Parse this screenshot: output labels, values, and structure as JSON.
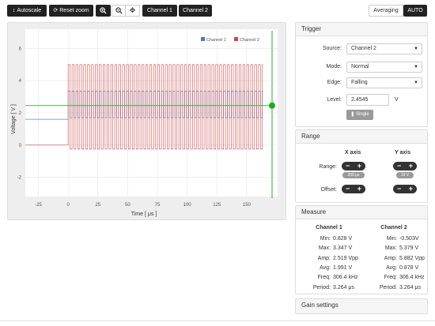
{
  "toolbar": {
    "autoscale_label": "Autoscale",
    "reset_zoom_label": "Reset zoom",
    "channel1_label": "Channel 1",
    "channel2_label": "Channel 2",
    "averaging_label": "Averaging",
    "auto_label": "AUTO"
  },
  "plot": {
    "xlabel": "Time [ μs ]",
    "ylabel": "Voltage [ V ]",
    "legend": [
      "Channel 1",
      "Channel 2"
    ],
    "colors": {
      "ch1": "#4a79b7",
      "ch2": "#c9494b",
      "trigger": "#3aa63a"
    }
  },
  "chart_data": {
    "type": "line",
    "xlabel": "Time [ μs ]",
    "ylabel": "Voltage [ V ]",
    "xlim": [
      -36,
      176
    ],
    "ylim": [
      -3.2,
      7.2
    ],
    "x_ticks": [
      -25,
      0,
      25,
      50,
      75,
      100,
      125,
      150
    ],
    "y_ticks": [
      -2,
      0,
      2,
      4,
      6
    ],
    "x_tick_labels": [
      "-25",
      "0",
      "25",
      "50",
      "75",
      "100",
      "125",
      "150"
    ],
    "y_tick_labels": [
      "-2",
      "0",
      "2",
      "4",
      "6"
    ],
    "grid": true,
    "legend_position": "top-right",
    "trigger_level": 2.4545,
    "series": [
      {
        "name": "Channel 1",
        "color": "#4a79b7",
        "x_start": -36,
        "x_end": 164,
        "step_at": 0,
        "pre_level": 1.6,
        "low": 1.7,
        "high": 3.35,
        "period": 3.264
      },
      {
        "name": "Channel 2",
        "color": "#c9494b",
        "x_start": -36,
        "x_end": 164,
        "step_at": 0,
        "pre_level": 0.0,
        "low": -0.25,
        "high": 5.0,
        "period": 3.264
      }
    ]
  },
  "trigger": {
    "title": "Trigger",
    "source_label": "Source:",
    "source_value": "Channel 2",
    "mode_label": "Mode:",
    "mode_value": "Normal",
    "edge_label": "Edge:",
    "edge_value": "Falling",
    "level_label": "Level:",
    "level_value": "2.4545",
    "level_unit": "V",
    "single_label": "Single"
  },
  "range": {
    "title": "Range",
    "x_axis_label": "X axis",
    "y_axis_label": "Y axis",
    "range_label": "Range:",
    "offset_label": "Offset:",
    "x_range_value": "200 μs",
    "y_range_value": "10 V"
  },
  "measure": {
    "title": "Measure",
    "channel1": {
      "title": "Channel 1",
      "rows": [
        {
          "label": "Min:",
          "value": "0.828 V"
        },
        {
          "label": "Max:",
          "value": "3.347 V"
        },
        {
          "label": "Amp:",
          "value": "2.519 Vpp"
        },
        {
          "label": "Avg:",
          "value": "1.991 V"
        },
        {
          "label": "Freq:",
          "value": "306.4 kHz"
        },
        {
          "label": "Period:",
          "value": "3.264 μs"
        }
      ]
    },
    "channel2": {
      "title": "Channel 2",
      "rows": [
        {
          "label": "Min:",
          "value": "-0.503V"
        },
        {
          "label": "Max:",
          "value": "5.379 V"
        },
        {
          "label": "Amp:",
          "value": "5.882 Vpp"
        },
        {
          "label": "Avg:",
          "value": "0.878 V"
        },
        {
          "label": "Freq:",
          "value": "306.4 kHz"
        },
        {
          "label": "Period:",
          "value": "3.264 μs"
        }
      ]
    }
  },
  "gain": {
    "title": "Gain settings"
  }
}
